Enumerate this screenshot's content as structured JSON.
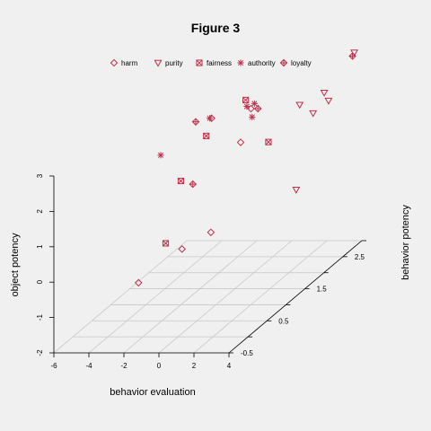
{
  "chart_data": {
    "type": "scatter3d",
    "title": "Figure 3",
    "xlabel": "behavior evaluation",
    "ylabel": "behavior potency",
    "zlabel": "object potency",
    "xlim": [
      -6,
      4
    ],
    "ylim": [
      -0.5,
      3.0
    ],
    "zlim": [
      -2,
      3
    ],
    "x_ticks": [
      "-6",
      "-4",
      "-2",
      "0",
      "2",
      "4"
    ],
    "y_ticks": [
      "-0.5",
      "0.0",
      "0.5",
      "1.0",
      "1.5",
      "2.0",
      "2.5",
      "3.0"
    ],
    "z_ticks": [
      "-2",
      "-1",
      "0",
      "1",
      "2",
      "3"
    ],
    "grid": true,
    "legend_position": "top-center",
    "marker_color": "#c0304a",
    "series": [
      {
        "name": "harm",
        "marker": "diamond",
        "points": [
          [
            -1.6,
            -0.3,
            -0.2
          ],
          [
            -0.2,
            0.2,
            0.3
          ],
          [
            0.8,
            0.5,
            0.5
          ],
          [
            -0.9,
            1.3,
            3.0
          ],
          [
            0.7,
            1.6,
            3.0
          ],
          [
            1.2,
            1.1,
            2.5
          ]
        ]
      },
      {
        "name": "purity",
        "marker": "triangle-down",
        "points": [
          [
            3.4,
            2.4,
            2.5
          ],
          [
            3.6,
            1.9,
            2.6
          ],
          [
            3.7,
            1.5,
            3.2
          ],
          [
            3.5,
            1.5,
            0.8
          ],
          [
            4.0,
            2.8,
            3.5
          ],
          [
            3.8,
            2.1,
            3.0
          ]
        ]
      },
      {
        "name": "fairness",
        "marker": "square-x",
        "points": [
          [
            -2.0,
            0.6,
            0.1
          ],
          [
            -2.0,
            1.0,
            1.5
          ],
          [
            -1.2,
            1.3,
            2.5
          ],
          [
            -0.9,
            2.2,
            2.7
          ],
          [
            3.0,
            1.0,
            2.6
          ]
        ]
      },
      {
        "name": "authority",
        "marker": "asterisk",
        "points": [
          [
            -2.5,
            0.7,
            2.5
          ],
          [
            -1.0,
            1.3,
            3.0
          ],
          [
            -0.4,
            2.0,
            2.7
          ],
          [
            -0.4,
            2.2,
            2.6
          ],
          [
            -0.1,
            2.0,
            2.4
          ]
        ]
      },
      {
        "name": "loyalty",
        "marker": "diamond-plus",
        "points": [
          [
            -1.8,
            1.3,
            2.9
          ],
          [
            -1.1,
            0.9,
            1.5
          ],
          [
            1.1,
            1.6,
            3.0
          ],
          [
            3.9,
            2.8,
            3.4
          ]
        ]
      }
    ]
  }
}
